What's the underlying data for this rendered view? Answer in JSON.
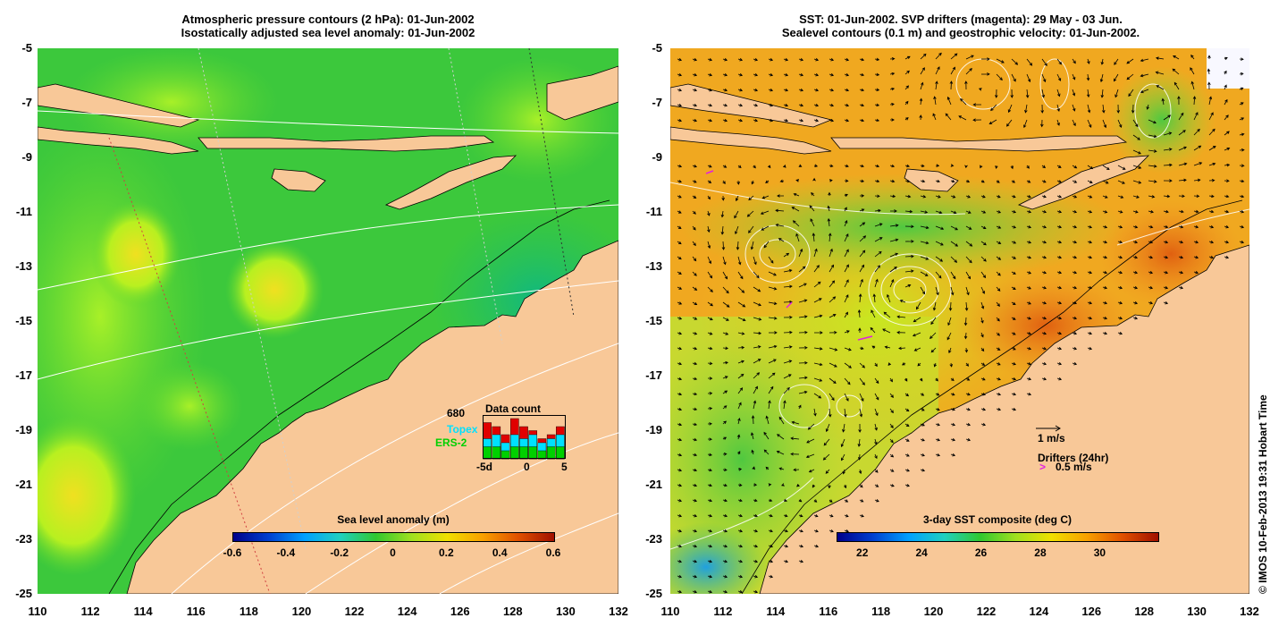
{
  "left_panel": {
    "title_line1": "Atmospheric pressure contours (2 hPa): 01-Jun-2002",
    "title_line2": "Isostatically adjusted sea level anomaly: 01-Jun-2002",
    "colorbar": {
      "title": "Sea level anomaly (m)",
      "ticks": [
        "-0.6",
        "-0.4",
        "-0.2",
        "0",
        "0.2",
        "0.4",
        "0.6"
      ]
    },
    "data_count": {
      "title": "Data count",
      "count_value": "680",
      "sat1": "Topex",
      "sat2": "ERS-2",
      "xticks": [
        "-5d",
        "0",
        "5"
      ],
      "colors": {
        "count": "#e00000",
        "topex": "#00e0ff",
        "ers2": "#00d000"
      },
      "bars_red": [
        9,
        8,
        6,
        10,
        8,
        7,
        5,
        6,
        8
      ],
      "bars_cyan": [
        5,
        6,
        4,
        6,
        5,
        6,
        4,
        5,
        6
      ],
      "bars_green": [
        3,
        3,
        2,
        3,
        3,
        3,
        2,
        3,
        3
      ]
    }
  },
  "right_panel": {
    "title_line1": "SST: 01-Jun-2002. SVP drifters (magenta): 29 May - 03 Jun.",
    "title_line2": "Sealevel contours (0.1 m) and geostrophic velocity: 01-Jun-2002.",
    "colorbar": {
      "title": "3-day SST composite (deg C)",
      "ticks": [
        "22",
        "24",
        "26",
        "28",
        "30"
      ]
    },
    "scale_vector_label": "1 m/s",
    "drifters_label": "Drifters (24hr)",
    "drifters_speed": "0.5 m/s"
  },
  "axes": {
    "y_ticks": [
      "-5",
      "-7",
      "-9",
      "-11",
      "-13",
      "-15",
      "-17",
      "-19",
      "-21",
      "-23",
      "-25"
    ],
    "x_ticks": [
      "110",
      "112",
      "114",
      "116",
      "118",
      "120",
      "122",
      "124",
      "126",
      "128",
      "130",
      "132"
    ]
  },
  "copyright": "© IMOS 10-Feb-2013 19:31 Hobart Time",
  "colors": {
    "land": "#f8c898",
    "ocean_sla": "#34c834",
    "ocean_sst": "#f0a020",
    "contour": "#ffffff"
  }
}
